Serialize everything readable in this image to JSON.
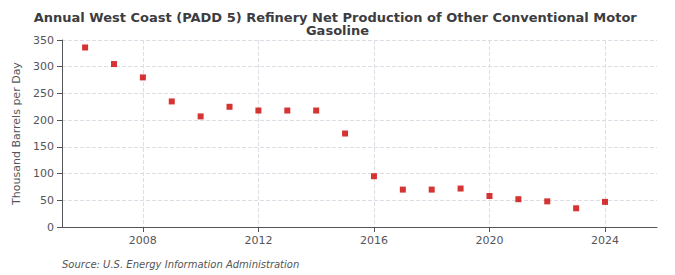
{
  "chart_data": {
    "type": "scatter",
    "title": "Annual West Coast (PADD 5) Refinery Net Production of Other Conventional Motor Gasoline",
    "ylabel": "Thousand Barrels per Day",
    "source": "Source: U.S. Energy Information Administration",
    "x": [
      2006,
      2007,
      2008,
      2009,
      2010,
      2011,
      2012,
      2013,
      2014,
      2015,
      2016,
      2017,
      2018,
      2019,
      2020,
      2021,
      2022,
      2023,
      2024
    ],
    "values": [
      336,
      305,
      280,
      235,
      207,
      225,
      218,
      218,
      218,
      175,
      95,
      70,
      70,
      72,
      58,
      52,
      48,
      35,
      47
    ],
    "color": "#cc0000",
    "marker": "square",
    "xlim": [
      2005.2,
      2025.8
    ],
    "xticks": [
      2008,
      2012,
      2016,
      2020,
      2024
    ],
    "ylim": [
      0,
      350
    ],
    "yticks": [
      0,
      50,
      100,
      150,
      200,
      250,
      300,
      350
    ],
    "grid": true
  }
}
